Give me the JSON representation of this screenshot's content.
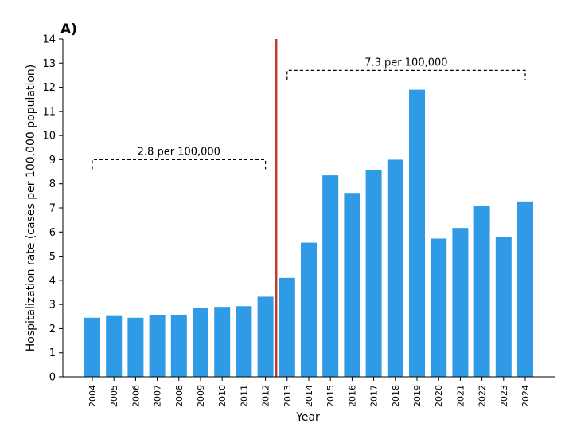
{
  "chart_data": {
    "type": "bar",
    "panel_label": "A)",
    "xlabel": "Year",
    "ylabel": "Hospitalization rate (cases per 100,000 population)",
    "ylim": [
      0,
      14
    ],
    "yticks": [
      0,
      1,
      2,
      3,
      4,
      5,
      6,
      7,
      8,
      9,
      10,
      11,
      12,
      13,
      14
    ],
    "categories": [
      "2004",
      "2005",
      "2006",
      "2007",
      "2008",
      "2009",
      "2010",
      "2011",
      "2012",
      "2013",
      "2014",
      "2015",
      "2016",
      "2017",
      "2018",
      "2019",
      "2020",
      "2021",
      "2022",
      "2023",
      "2024"
    ],
    "values": [
      2.45,
      2.52,
      2.45,
      2.55,
      2.55,
      2.87,
      2.9,
      2.93,
      3.32,
      4.1,
      5.56,
      8.35,
      7.62,
      8.57,
      9.0,
      11.9,
      5.73,
      6.17,
      7.08,
      5.78,
      7.27
    ],
    "bar_color": "#2f9be6",
    "divider": {
      "after_category": "2012",
      "color": "#c0392b"
    },
    "annotations": [
      {
        "label": "2.8 per 100,000",
        "from": "2004",
        "to": "2012",
        "y": 9.0
      },
      {
        "label": "7.3 per 100,000",
        "from": "2013",
        "to": "2024",
        "y": 12.7
      }
    ],
    "grid": false
  }
}
